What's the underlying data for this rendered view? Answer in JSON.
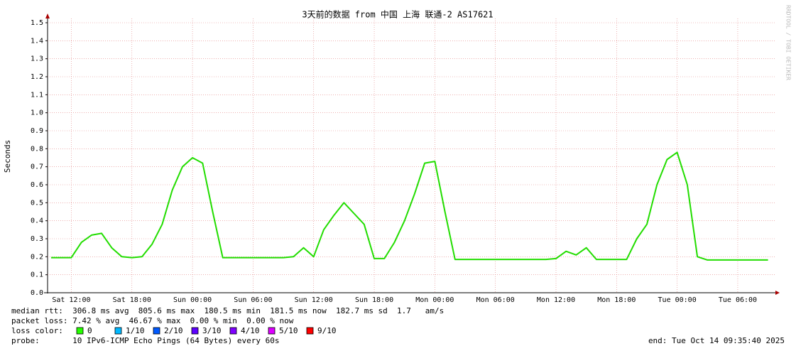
{
  "chart_data": {
    "type": "line",
    "title": "3天前的数据 from 中国 上海 联通-2 AS17621",
    "ylabel": "Seconds",
    "watermark": "RRDTOOL / TOBI OETIKER",
    "categories": [
      null,
      null,
      "Sat 12:00",
      null,
      null,
      null,
      null,
      null,
      "Sat 18:00",
      null,
      null,
      null,
      null,
      null,
      "Sun 00:00",
      null,
      null,
      null,
      null,
      null,
      "Sun 06:00",
      null,
      null,
      null,
      null,
      null,
      "Sun 12:00",
      null,
      null,
      null,
      null,
      null,
      "Sun 18:00",
      null,
      null,
      null,
      null,
      null,
      "Mon 00:00",
      null,
      null,
      null,
      null,
      null,
      "Mon 06:00",
      null,
      null,
      null,
      null,
      null,
      "Mon 12:00",
      null,
      null,
      null,
      null,
      null,
      "Mon 18:00",
      null,
      null,
      null,
      null,
      null,
      "Tue 00:00",
      null,
      null,
      null,
      null,
      null,
      "Tue 06:00",
      null,
      null,
      null
    ],
    "series": [
      {
        "color": "#22dd00",
        "values": [
          0.195,
          0.195,
          0.195,
          0.28,
          0.32,
          0.33,
          0.25,
          0.2,
          0.195,
          0.2,
          0.27,
          0.38,
          0.57,
          0.7,
          0.75,
          0.72,
          0.45,
          0.195,
          0.195,
          0.195,
          0.195,
          0.195,
          0.195,
          0.195,
          0.2,
          0.25,
          0.2,
          0.35,
          0.43,
          0.5,
          0.44,
          0.38,
          0.19,
          0.19,
          0.28,
          0.4,
          0.55,
          0.72,
          0.73,
          0.45,
          0.185,
          0.185,
          0.185,
          0.185,
          0.185,
          0.185,
          0.185,
          0.185,
          0.185,
          0.185,
          0.19,
          0.23,
          0.21,
          0.25,
          0.185,
          0.185,
          0.185,
          0.185,
          0.3,
          0.38,
          0.6,
          0.74,
          0.78,
          0.6,
          0.2,
          0.182,
          0.182,
          0.182,
          0.182,
          0.182,
          0.182,
          0.182
        ]
      }
    ],
    "ylim": [
      0,
      1.5
    ],
    "yticks": [
      {
        "value": 0,
        "label": "0.0"
      },
      0.1,
      0.2,
      0.3,
      0.4,
      0.5,
      0.6,
      0.7,
      0.8,
      0.9,
      {
        "value": 1,
        "label": "1.0"
      },
      1.1,
      1.2,
      1.3,
      1.4,
      1.5
    ],
    "grid": true,
    "stats": [
      "median rtt:  306.8 ms avg  805.6 ms max  180.5 ms min  181.5 ms now  182.7 ms sd  1.7   am/s",
      "packet loss: 7.42 % avg  46.67 % max  0.00 % min  0.00 % now"
    ],
    "loss_label": "loss color:",
    "loss_legend": [
      {
        "label": "0",
        "color": "#26ff00"
      },
      {
        "label": "1/10",
        "color": "#00b8ff"
      },
      {
        "label": "2/10",
        "color": "#0059ff"
      },
      {
        "label": "3/10",
        "color": "#5e00ff"
      },
      {
        "label": "4/10",
        "color": "#7e00ff"
      },
      {
        "label": "5/10",
        "color": "#dd00ff"
      },
      {
        "label": "9/10",
        "color": "#ff0000"
      }
    ],
    "probe": "probe:       10 IPv6-ICMP Echo Pings (64 Bytes) every 60s",
    "end": "end: Tue Oct 14 09:35:40 2025"
  }
}
